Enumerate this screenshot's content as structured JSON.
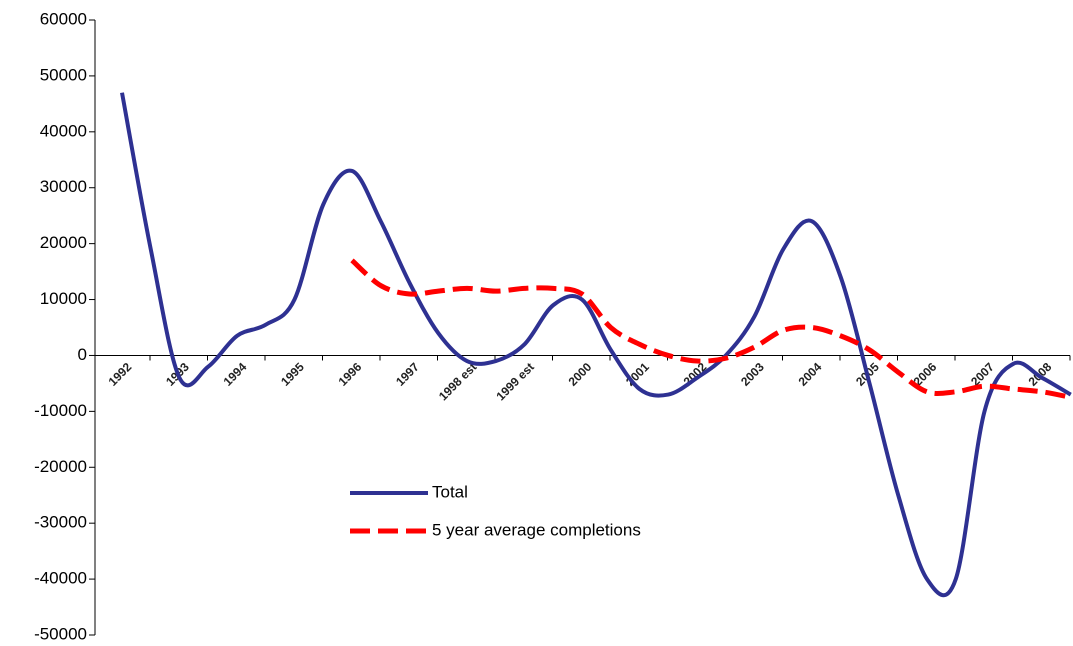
{
  "chart_data": {
    "type": "line",
    "categories": [
      "1992",
      null,
      "1993",
      null,
      "1994",
      null,
      "1995",
      null,
      "1996",
      null,
      "1997",
      null,
      "1998 est",
      null,
      "1999 est",
      null,
      "2000",
      null,
      "2001",
      null,
      "2002",
      null,
      "2003",
      null,
      "2004",
      null,
      "2005",
      null,
      "2006",
      null,
      "2007",
      null,
      "2008",
      null
    ],
    "series": [
      {
        "name": "Total",
        "color": "#2e3192",
        "dash": false,
        "values": [
          47000,
          19000,
          -4000,
          -2000,
          3500,
          5500,
          10000,
          27000,
          33000,
          24000,
          13000,
          4000,
          -1000,
          -1000,
          2000,
          9000,
          10000,
          1000,
          -6000,
          -7000,
          -4000,
          0,
          7000,
          19000,
          24000,
          14000,
          -5000,
          -25000,
          -40000,
          -40000,
          -10000,
          -1500,
          -4000,
          -7000
        ]
      },
      {
        "name": "5 year average completions",
        "color": "#ff0000",
        "dash": true,
        "values": [
          null,
          null,
          null,
          null,
          null,
          null,
          null,
          null,
          17000,
          12500,
          11000,
          11500,
          12000,
          11500,
          12000,
          12000,
          11000,
          5000,
          2000,
          0,
          -1000,
          -500,
          1500,
          4500,
          5000,
          3500,
          1000,
          -3000,
          -6500,
          -6500,
          -5500,
          -6000,
          -6500,
          -7500
        ]
      }
    ],
    "ylim": [
      -50000,
      60000
    ],
    "yticks": [
      -50000,
      -40000,
      -30000,
      -20000,
      -10000,
      0,
      10000,
      20000,
      30000,
      40000,
      50000,
      60000
    ],
    "grid": false
  }
}
